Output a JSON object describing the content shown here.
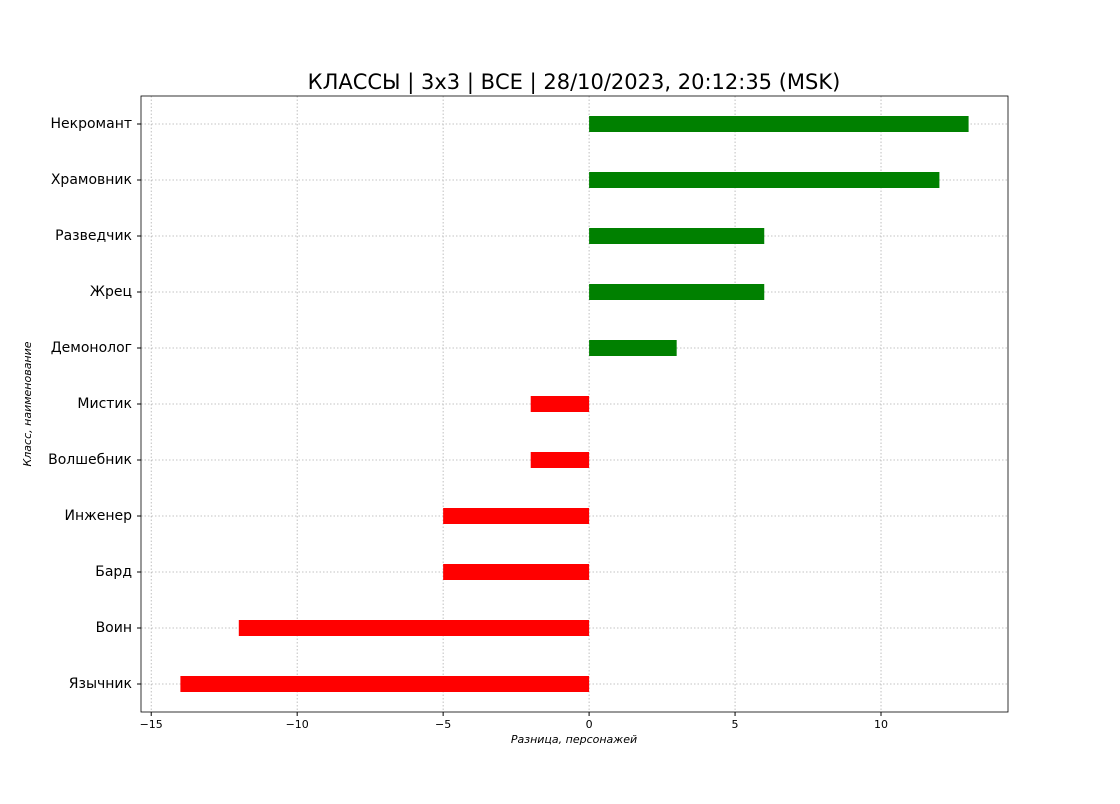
{
  "chart_data": {
    "type": "barh",
    "title": "КЛАССЫ | 3x3 | ВСЕ | 28/10/2023, 20:12:35 (MSK)",
    "x_label": "Разница, персонажей",
    "y_label": "Класс, наименование",
    "categories": [
      "Некромант",
      "Храмовник",
      "Разведчик",
      "Жрец",
      "Демонолог",
      "Мистик",
      "Волшебник",
      "Инженер",
      "Бард",
      "Воин",
      "Язычник"
    ],
    "values": [
      13,
      12,
      6,
      6,
      3,
      -2,
      -2,
      -5,
      -5,
      -12,
      -14
    ],
    "colors": [
      "green",
      "green",
      "green",
      "green",
      "green",
      "red",
      "red",
      "red",
      "red",
      "red",
      "red"
    ],
    "xlim": [
      -15.35,
      14.35
    ],
    "xticks": [
      {
        "value": -15,
        "label": "−15"
      },
      {
        "value": -10,
        "label": "−10"
      },
      {
        "value": -5,
        "label": "−5"
      },
      0,
      5,
      10
    ],
    "grid": true
  }
}
